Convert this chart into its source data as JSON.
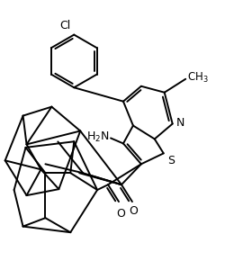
{
  "bg_color": "#ffffff",
  "line_color": "#000000",
  "lw": 1.4,
  "figsize": [
    2.6,
    2.9
  ],
  "dpi": 100,
  "xlim": [
    0.0,
    2.6
  ],
  "ylim": [
    0.15,
    2.9
  ]
}
